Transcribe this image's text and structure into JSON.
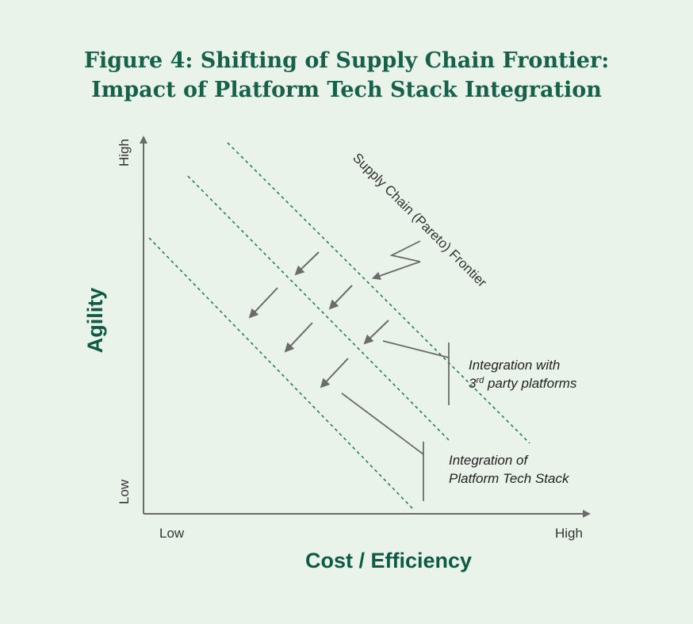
{
  "title": {
    "line1": "Figure 4: Shifting of Supply Chain Frontier:",
    "line2": "Impact of Platform Tech Stack Integration"
  },
  "axes": {
    "x_title": "Cost / Efficiency",
    "y_title": "Agility",
    "x_low": "Low",
    "x_high": "High",
    "y_low": "Low",
    "y_high": "High"
  },
  "annotations": {
    "frontier_label": "Supply Chain (Pareto) Frontier",
    "third_party": {
      "line1": "Integration with",
      "line2_prefix": "3",
      "line2_sup": "rd",
      "line2_suffix": " party platforms"
    },
    "platform_stack": {
      "line1": "Integration of",
      "line2": "Platform Tech Stack"
    }
  },
  "colors": {
    "title": "#17614a",
    "axis_title": "#0f5a44",
    "frontier": "#2a7d5a",
    "arrow": "#6b6b6b",
    "background": "#e9f3ea"
  },
  "icons": {
    "shift_arrow": "arrow-down-left-icon"
  }
}
